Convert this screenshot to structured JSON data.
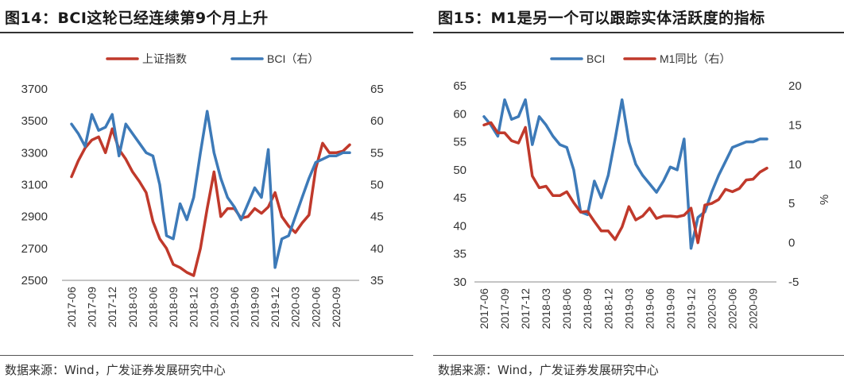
{
  "left": {
    "title": "图14：BCI这轮已经连续第9个月上升",
    "source": "数据来源：Wind，广发证券发展研究中心",
    "legend": [
      "上证指数",
      "BCI（右）"
    ]
  },
  "right": {
    "title": "图15：M1是另一个可以跟踪实体活跃度的指标",
    "source": "数据来源：Wind，广发证券发展研究中心",
    "legend": [
      "BCI",
      "M1同比（右）"
    ]
  },
  "colors": {
    "red": "#c0392b",
    "blue": "#3d7ab8"
  },
  "chart_data": [
    {
      "type": "line",
      "title": "BCI这轮已经连续第9个月上升",
      "categories": [
        "2017-06",
        "2017-09",
        "2017-12",
        "2018-03",
        "2018-06",
        "2018-09",
        "2018-12",
        "2019-03",
        "2019-06",
        "2019-09",
        "2019-12",
        "2020-03",
        "2020-06",
        "2020-09"
      ],
      "x": [
        "2017-06",
        "2017-07",
        "2017-08",
        "2017-09",
        "2017-10",
        "2017-11",
        "2017-12",
        "2018-01",
        "2018-02",
        "2018-03",
        "2018-04",
        "2018-05",
        "2018-06",
        "2018-07",
        "2018-08",
        "2018-09",
        "2018-10",
        "2018-11",
        "2018-12",
        "2019-01",
        "2019-02",
        "2019-03",
        "2019-04",
        "2019-05",
        "2019-06",
        "2019-07",
        "2019-08",
        "2019-09",
        "2019-10",
        "2019-11",
        "2019-12",
        "2020-01",
        "2020-02",
        "2020-03",
        "2020-04",
        "2020-05",
        "2020-06",
        "2020-07",
        "2020-08",
        "2020-09",
        "2020-10",
        "2020-11"
      ],
      "y_left": {
        "ticks": [
          2500,
          2700,
          2900,
          3100,
          3300,
          3500,
          3700
        ],
        "ylim": [
          2500,
          3700
        ]
      },
      "y_right": {
        "ticks": [
          35,
          40,
          45,
          50,
          55,
          60,
          65
        ],
        "ylim": [
          35,
          65
        ]
      },
      "series": [
        {
          "name": "上证指数",
          "axis": "left",
          "color": "red",
          "values": [
            3150,
            3250,
            3330,
            3380,
            3400,
            3300,
            3450,
            3320,
            3260,
            3180,
            3120,
            3050,
            2870,
            2760,
            2700,
            2600,
            2580,
            2550,
            2530,
            2700,
            2950,
            3180,
            2900,
            2950,
            2950,
            2890,
            2900,
            2950,
            2920,
            2960,
            3050,
            2900,
            2840,
            2800,
            2860,
            2910,
            3200,
            3360,
            3300,
            3300,
            3310,
            3350
          ]
        },
        {
          "name": "BCI（右）",
          "axis": "right",
          "color": "blue",
          "values": [
            59.5,
            58.0,
            56.0,
            61.0,
            58.5,
            59.0,
            61.0,
            54.5,
            59.5,
            58.0,
            56.5,
            55.0,
            54.5,
            50.0,
            42.0,
            41.5,
            47.0,
            44.5,
            48.0,
            55.0,
            61.5,
            55.0,
            51.0,
            48.0,
            46.5,
            44.5,
            47.0,
            49.5,
            48.0,
            55.5,
            37.0,
            41.5,
            42.0,
            45.0,
            48.0,
            51.0,
            53.5,
            54.0,
            54.5,
            54.5,
            55.0,
            55.0
          ]
        }
      ]
    },
    {
      "type": "line",
      "title": "M1是另一个可以跟踪实体活跃度的指标",
      "categories": [
        "2017-06",
        "2017-09",
        "2017-12",
        "2018-03",
        "2018-06",
        "2018-09",
        "2018-12",
        "2019-03",
        "2019-06",
        "2019-09",
        "2019-12",
        "2020-03",
        "2020-06",
        "2020-09"
      ],
      "x": [
        "2017-06",
        "2017-07",
        "2017-08",
        "2017-09",
        "2017-10",
        "2017-11",
        "2017-12",
        "2018-01",
        "2018-02",
        "2018-03",
        "2018-04",
        "2018-05",
        "2018-06",
        "2018-07",
        "2018-08",
        "2018-09",
        "2018-10",
        "2018-11",
        "2018-12",
        "2019-01",
        "2019-02",
        "2019-03",
        "2019-04",
        "2019-05",
        "2019-06",
        "2019-07",
        "2019-08",
        "2019-09",
        "2019-10",
        "2019-11",
        "2019-12",
        "2020-01",
        "2020-02",
        "2020-03",
        "2020-04",
        "2020-05",
        "2020-06",
        "2020-07",
        "2020-08",
        "2020-09",
        "2020-10",
        "2020-11"
      ],
      "y_left": {
        "ticks": [
          30,
          35,
          40,
          45,
          50,
          55,
          60,
          65
        ],
        "ylim": [
          30,
          65
        ]
      },
      "y_right": {
        "ticks": [
          -5,
          0,
          5,
          10,
          15,
          20
        ],
        "ylim": [
          -5,
          20
        ],
        "label": "%"
      },
      "series": [
        {
          "name": "BCI",
          "axis": "left",
          "color": "blue",
          "values": [
            59.5,
            58.0,
            56.0,
            62.5,
            59.0,
            59.5,
            62.5,
            54.5,
            59.5,
            58.0,
            56.0,
            54.5,
            54.0,
            50.0,
            42.5,
            42.0,
            48.0,
            45.0,
            49.0,
            55.5,
            62.5,
            55.0,
            51.0,
            49.0,
            47.5,
            46.0,
            48.0,
            50.5,
            50.0,
            55.5,
            36.0,
            41.5,
            42.5,
            46.0,
            49.0,
            51.5,
            54.0,
            54.5,
            55.0,
            55.0,
            55.5,
            55.5
          ]
        },
        {
          "name": "M1同比（右）",
          "axis": "right",
          "color": "red",
          "values": [
            15.0,
            15.3,
            14.0,
            14.0,
            13.0,
            12.7,
            14.7,
            8.5,
            7.0,
            7.2,
            6.0,
            6.0,
            6.5,
            5.1,
            3.9,
            4.0,
            2.7,
            1.5,
            1.5,
            0.4,
            2.0,
            4.6,
            2.9,
            3.4,
            4.4,
            3.1,
            3.4,
            3.4,
            3.3,
            3.5,
            4.4,
            0.0,
            4.8,
            5.0,
            5.5,
            6.8,
            6.5,
            6.9,
            8.0,
            8.1,
            9.0,
            9.5
          ]
        }
      ]
    }
  ]
}
